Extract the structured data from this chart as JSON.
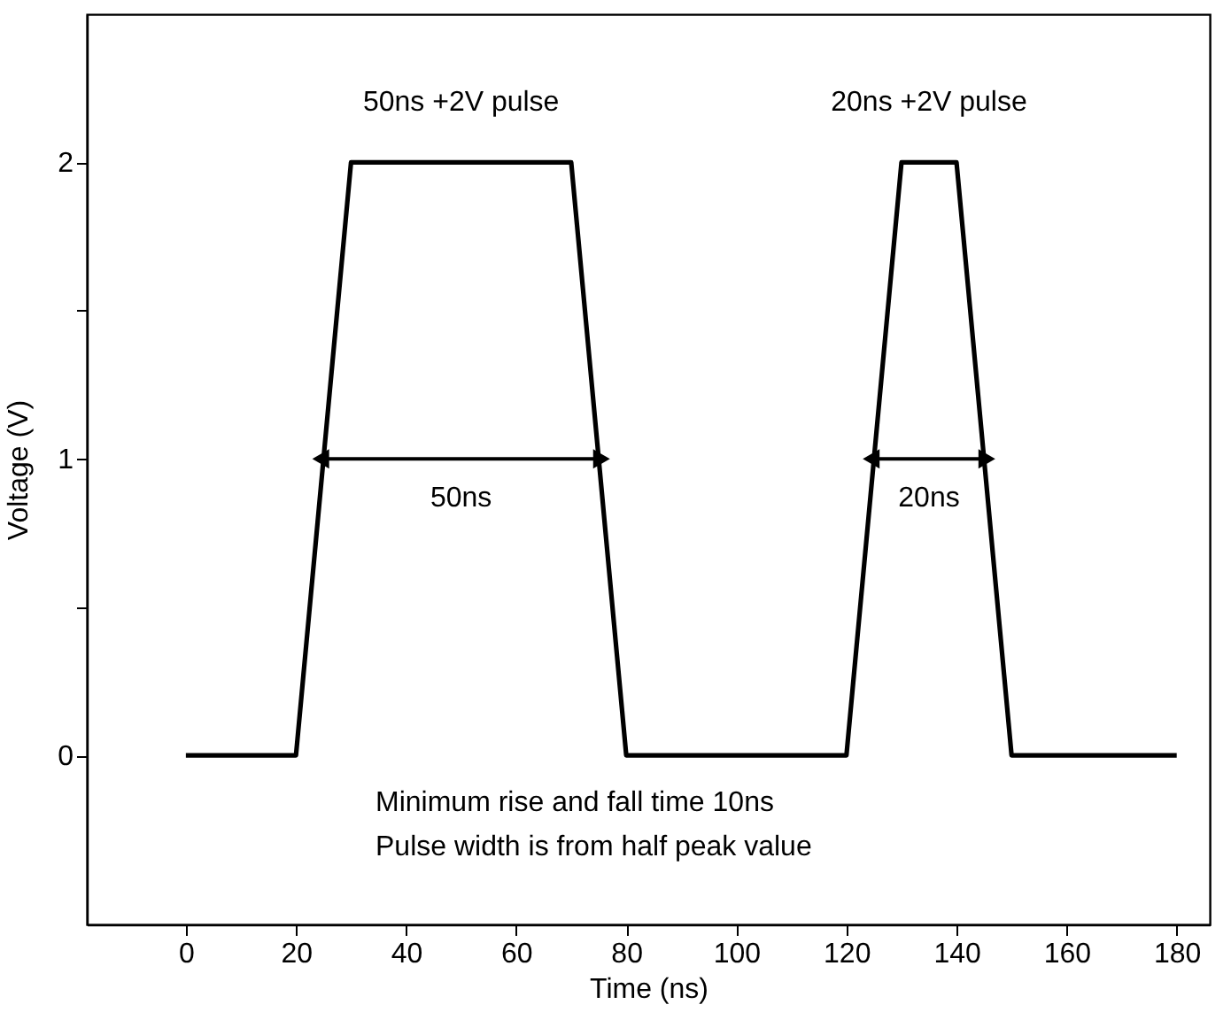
{
  "chart_data": {
    "type": "line",
    "xlabel": "Time (ns)",
    "ylabel": "Voltage (V)",
    "x": [
      0,
      20,
      30,
      70,
      80,
      120,
      130,
      140,
      150,
      180
    ],
    "series": [
      {
        "color": "#000000",
        "values": [
          0,
          0,
          2,
          2,
          0,
          0,
          2,
          2,
          0,
          0
        ]
      }
    ],
    "xlim": [
      -18,
      186
    ],
    "ylim": [
      -0.57,
      2.5
    ],
    "xticks": [
      0,
      20,
      40,
      60,
      80,
      100,
      120,
      140,
      160,
      180
    ],
    "yticks": [
      0,
      {
        "value": 0.5,
        "label": null
      },
      1,
      {
        "value": 1.5,
        "label": null
      },
      2
    ],
    "annotations": [
      "50ns +2V pulse",
      "20ns +2V pulse",
      "50ns",
      "20ns",
      "Minimum rise and fall time 10ns",
      "Pulse width is from half peak value"
    ],
    "grid": false,
    "legend": false,
    "marker": "none",
    "line_style": "solid"
  }
}
